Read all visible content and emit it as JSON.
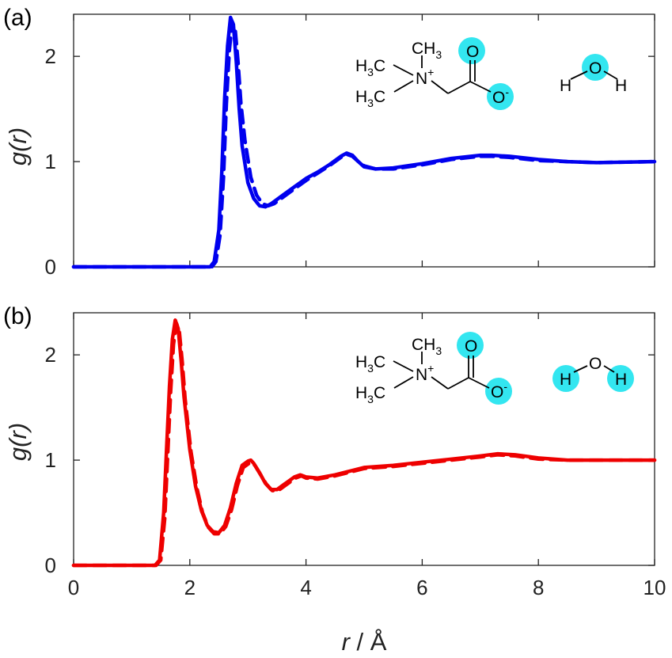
{
  "chart_data": [
    {
      "type": "line",
      "panel_label": "(a)",
      "xlabel": "r / Å",
      "ylabel": "g(r)",
      "xlim": [
        0,
        10
      ],
      "ylim": [
        0,
        2.4
      ],
      "xticks": [
        "",
        "",
        "",
        "",
        "",
        ""
      ],
      "yticks": [
        "0",
        "1",
        "2"
      ],
      "color": "#0000ee",
      "grid": false,
      "series": [
        {
          "style": "solid",
          "x": [
            0,
            2.35,
            2.42,
            2.5,
            2.55,
            2.6,
            2.65,
            2.7,
            2.75,
            2.8,
            2.85,
            2.9,
            3.0,
            3.1,
            3.2,
            3.3,
            3.4,
            3.6,
            3.8,
            4.0,
            4.2,
            4.4,
            4.6,
            4.7,
            4.8,
            4.9,
            5.0,
            5.2,
            5.5,
            6.0,
            6.5,
            7.0,
            7.2,
            7.5,
            8.0,
            8.5,
            9.0,
            10.0
          ],
          "y": [
            0,
            0,
            0.05,
            0.35,
            0.9,
            1.6,
            2.1,
            2.37,
            2.3,
            1.95,
            1.5,
            1.15,
            0.8,
            0.65,
            0.58,
            0.57,
            0.6,
            0.68,
            0.76,
            0.84,
            0.9,
            0.97,
            1.05,
            1.08,
            1.06,
            1.0,
            0.95,
            0.93,
            0.94,
            0.98,
            1.03,
            1.06,
            1.06,
            1.05,
            1.02,
            1.0,
            0.99,
            1.0
          ]
        },
        {
          "style": "dashed",
          "x": [
            0,
            2.38,
            2.45,
            2.52,
            2.58,
            2.63,
            2.68,
            2.73,
            2.78,
            2.83,
            2.88,
            2.95,
            3.05,
            3.15,
            3.25,
            3.35,
            3.45,
            3.6,
            3.8,
            4.0,
            4.2,
            4.4,
            4.6,
            4.7,
            4.8,
            4.9,
            5.0,
            5.2,
            5.5,
            6.0,
            6.5,
            7.0,
            7.2,
            7.5,
            8.0,
            8.5,
            9.0,
            10.0
          ],
          "y": [
            0,
            0,
            0.05,
            0.3,
            0.85,
            1.55,
            2.05,
            2.33,
            2.26,
            1.95,
            1.55,
            1.2,
            0.85,
            0.68,
            0.6,
            0.58,
            0.6,
            0.66,
            0.74,
            0.82,
            0.89,
            0.96,
            1.04,
            1.07,
            1.05,
            1.0,
            0.96,
            0.93,
            0.93,
            0.97,
            1.02,
            1.05,
            1.05,
            1.04,
            1.01,
            1.0,
            0.99,
            1.0
          ]
        }
      ],
      "molecule_left": {
        "methyl_top": [
          "CH",
          "3"
        ],
        "methyl_mid": [
          "H",
          "3",
          "C"
        ],
        "methyl_bot": [
          "H",
          "3",
          "C"
        ],
        "nitrogen": [
          "N",
          "+"
        ],
        "oxygen_top": "O",
        "oxygen_bottom": [
          "O",
          "-"
        ]
      },
      "molecule_right": {
        "h_left": "H",
        "o": "O",
        "h_right": "H"
      },
      "highlight_color": "#33e6f0"
    },
    {
      "type": "line",
      "panel_label": "(b)",
      "xlabel": "r / Å",
      "ylabel": "g(r)",
      "xlim": [
        0,
        10
      ],
      "ylim": [
        0,
        2.4
      ],
      "xticks": [
        "0",
        "2",
        "4",
        "6",
        "8",
        "10"
      ],
      "yticks": [
        "0",
        "1",
        "2"
      ],
      "color": "#ee0000",
      "grid": false,
      "series": [
        {
          "style": "solid",
          "x": [
            0,
            1.4,
            1.48,
            1.55,
            1.6,
            1.65,
            1.7,
            1.75,
            1.8,
            1.85,
            1.9,
            2.0,
            2.1,
            2.2,
            2.3,
            2.4,
            2.5,
            2.6,
            2.7,
            2.8,
            2.9,
            3.0,
            3.05,
            3.1,
            3.2,
            3.3,
            3.4,
            3.5,
            3.6,
            3.7,
            3.8,
            3.9,
            4.0,
            4.2,
            4.5,
            5.0,
            5.5,
            6.0,
            6.5,
            7.0,
            7.3,
            7.6,
            8.0,
            8.5,
            9.0,
            10.0
          ],
          "y": [
            0,
            0,
            0.05,
            0.5,
            1.1,
            1.7,
            2.15,
            2.33,
            2.25,
            1.95,
            1.6,
            1.1,
            0.75,
            0.52,
            0.38,
            0.32,
            0.31,
            0.38,
            0.55,
            0.78,
            0.95,
            0.99,
            1.0,
            0.97,
            0.88,
            0.78,
            0.72,
            0.72,
            0.76,
            0.8,
            0.84,
            0.86,
            0.84,
            0.83,
            0.86,
            0.93,
            0.95,
            0.98,
            1.01,
            1.04,
            1.06,
            1.05,
            1.02,
            1.0,
            1.0,
            1.0
          ]
        },
        {
          "style": "dashed",
          "x": [
            0,
            1.42,
            1.5,
            1.57,
            1.62,
            1.67,
            1.72,
            1.77,
            1.82,
            1.87,
            1.92,
            2.02,
            2.12,
            2.22,
            2.32,
            2.42,
            2.52,
            2.62,
            2.72,
            2.82,
            2.92,
            3.02,
            3.07,
            3.12,
            3.22,
            3.32,
            3.42,
            3.52,
            3.62,
            3.72,
            3.82,
            3.92,
            4.0,
            4.2,
            4.5,
            5.0,
            5.5,
            6.0,
            6.5,
            7.0,
            7.3,
            7.6,
            8.0,
            8.5,
            9.0,
            10.0
          ],
          "y": [
            0,
            0,
            0.05,
            0.45,
            1.05,
            1.65,
            2.1,
            2.3,
            2.22,
            1.93,
            1.58,
            1.08,
            0.74,
            0.5,
            0.36,
            0.3,
            0.3,
            0.37,
            0.53,
            0.76,
            0.93,
            0.97,
            0.98,
            0.95,
            0.86,
            0.77,
            0.71,
            0.71,
            0.75,
            0.79,
            0.83,
            0.85,
            0.83,
            0.82,
            0.85,
            0.92,
            0.94,
            0.97,
            1.0,
            1.03,
            1.05,
            1.04,
            1.01,
            1.0,
            1.0,
            1.0
          ]
        }
      ],
      "molecule_left": {
        "methyl_top": [
          "CH",
          "3"
        ],
        "methyl_mid": [
          "H",
          "3",
          "C"
        ],
        "methyl_bot": [
          "H",
          "3",
          "C"
        ],
        "nitrogen": [
          "N",
          "+"
        ],
        "oxygen_top": "O",
        "oxygen_bottom": [
          "O",
          "-"
        ]
      },
      "molecule_right": {
        "h_left": "H",
        "o": "O",
        "h_right": "H"
      },
      "highlight_color": "#33e6f0"
    }
  ]
}
